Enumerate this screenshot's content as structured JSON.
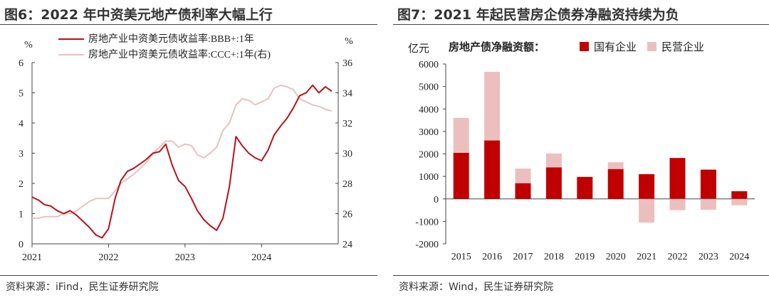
{
  "left": {
    "title": "图6：2022 年中资美元地产债利率大幅上行",
    "source": "资料来源：iFind，民生证券研究院"
  },
  "right": {
    "title": "图7：2021 年起民营房企债券净融资持续为负",
    "source": "资料来源：Wind，民生证券研究院"
  },
  "colors": {
    "dark_red": "#b5121b",
    "light_pink": "#ecbfbf"
  },
  "chart_data": [
    {
      "type": "line",
      "title": "",
      "x_ticks": [
        "2021",
        "2022",
        "2023",
        "2024"
      ],
      "y_left_label": "%",
      "y_right_label": "%",
      "y_left_ticks": [
        "0",
        "1",
        "2",
        "3",
        "4",
        "5",
        "6"
      ],
      "y_right_ticks": [
        "24",
        "26",
        "28",
        "30",
        "32",
        "34",
        "36"
      ],
      "ylim_left": [
        0,
        6
      ],
      "ylim_right": [
        24,
        36
      ],
      "legend_position": "top",
      "grid": false,
      "series": [
        {
          "name": "房地产业中资美元债收益率:BBB+:1年",
          "axis": "left",
          "color": "#b5121b",
          "points": [
            [
              "2021-01-01",
              1.55
            ],
            [
              "2021-02-01",
              1.45
            ],
            [
              "2021-03-01",
              1.3
            ],
            [
              "2021-04-01",
              1.25
            ],
            [
              "2021-05-01",
              1.1
            ],
            [
              "2021-06-01",
              1.0
            ],
            [
              "2021-07-01",
              1.1
            ],
            [
              "2021-08-01",
              0.95
            ],
            [
              "2021-09-01",
              0.75
            ],
            [
              "2021-10-01",
              0.55
            ],
            [
              "2021-11-01",
              0.3
            ],
            [
              "2021-12-01",
              0.2
            ],
            [
              "2022-01-01",
              0.5
            ],
            [
              "2022-02-01",
              1.5
            ],
            [
              "2022-03-01",
              2.1
            ],
            [
              "2022-04-01",
              2.4
            ],
            [
              "2022-05-01",
              2.5
            ],
            [
              "2022-06-01",
              2.65
            ],
            [
              "2022-07-01",
              2.8
            ],
            [
              "2022-08-01",
              3.0
            ],
            [
              "2022-09-01",
              3.05
            ],
            [
              "2022-10-01",
              3.3
            ],
            [
              "2022-11-01",
              2.6
            ],
            [
              "2022-12-01",
              2.1
            ],
            [
              "2023-01-01",
              1.9
            ],
            [
              "2023-02-01",
              1.5
            ],
            [
              "2023-03-01",
              1.1
            ],
            [
              "2023-04-01",
              0.8
            ],
            [
              "2023-05-01",
              0.6
            ],
            [
              "2023-06-01",
              0.45
            ],
            [
              "2023-07-01",
              0.85
            ],
            [
              "2023-08-01",
              1.9
            ],
            [
              "2023-09-01",
              3.55
            ],
            [
              "2023-10-01",
              3.25
            ],
            [
              "2023-11-01",
              3.0
            ],
            [
              "2023-12-01",
              2.85
            ],
            [
              "2024-01-01",
              2.75
            ],
            [
              "2024-02-01",
              3.1
            ],
            [
              "2024-03-01",
              3.6
            ],
            [
              "2024-04-01",
              3.9
            ],
            [
              "2024-05-01",
              4.15
            ],
            [
              "2024-06-01",
              4.5
            ],
            [
              "2024-07-01",
              4.9
            ],
            [
              "2024-08-01",
              5.0
            ],
            [
              "2024-09-01",
              5.25
            ],
            [
              "2024-10-01",
              5.0
            ],
            [
              "2024-11-01",
              5.2
            ],
            [
              "2024-12-01",
              5.05
            ]
          ]
        },
        {
          "name": "房地产业中资美元债收益率:CCC+:1年(右)",
          "axis": "right",
          "color": "#ecbfbf",
          "points": [
            [
              "2021-01-01",
              25.7
            ],
            [
              "2021-02-01",
              25.7
            ],
            [
              "2021-03-01",
              25.8
            ],
            [
              "2021-04-01",
              25.8
            ],
            [
              "2021-05-01",
              25.8
            ],
            [
              "2021-06-01",
              26.0
            ],
            [
              "2021-07-01",
              26.0
            ],
            [
              "2021-08-01",
              26.2
            ],
            [
              "2021-09-01",
              26.5
            ],
            [
              "2021-10-01",
              26.8
            ],
            [
              "2021-11-01",
              27.0
            ],
            [
              "2021-12-01",
              27.0
            ],
            [
              "2022-01-01",
              27.0
            ],
            [
              "2022-02-01",
              27.5
            ],
            [
              "2022-03-01",
              28.0
            ],
            [
              "2022-04-01",
              28.3
            ],
            [
              "2022-05-01",
              28.6
            ],
            [
              "2022-06-01",
              29.0
            ],
            [
              "2022-07-01",
              29.4
            ],
            [
              "2022-08-01",
              30.0
            ],
            [
              "2022-09-01",
              30.4
            ],
            [
              "2022-10-01",
              30.8
            ],
            [
              "2022-11-01",
              30.8
            ],
            [
              "2022-12-01",
              30.4
            ],
            [
              "2023-01-01",
              30.6
            ],
            [
              "2023-02-01",
              30.5
            ],
            [
              "2023-03-01",
              29.9
            ],
            [
              "2023-04-01",
              29.7
            ],
            [
              "2023-05-01",
              30.0
            ],
            [
              "2023-06-01",
              30.4
            ],
            [
              "2023-07-01",
              31.5
            ],
            [
              "2023-08-01",
              32.0
            ],
            [
              "2023-09-01",
              33.2
            ],
            [
              "2023-10-01",
              33.6
            ],
            [
              "2023-11-01",
              33.5
            ],
            [
              "2023-12-01",
              33.2
            ],
            [
              "2024-01-01",
              33.4
            ],
            [
              "2024-02-01",
              33.6
            ],
            [
              "2024-03-01",
              34.3
            ],
            [
              "2024-04-01",
              34.5
            ],
            [
              "2024-05-01",
              34.4
            ],
            [
              "2024-06-01",
              34.2
            ],
            [
              "2024-07-01",
              33.6
            ],
            [
              "2024-08-01",
              33.4
            ],
            [
              "2024-09-01",
              33.2
            ],
            [
              "2024-10-01",
              33.1
            ],
            [
              "2024-11-01",
              32.9
            ],
            [
              "2024-12-01",
              32.8
            ]
          ]
        }
      ]
    },
    {
      "type": "bar",
      "stacked": true,
      "title": "",
      "ylabel": "亿元",
      "legend_title": "房地产债净融资额：",
      "legend_position": "top",
      "categories": [
        "2015",
        "2016",
        "2017",
        "2018",
        "2019",
        "2020",
        "2021",
        "2022",
        "2023",
        "2024"
      ],
      "y_ticks": [
        "6000",
        "5000",
        "4000",
        "3000",
        "2000",
        "1000",
        "0",
        "-1000",
        "-2000"
      ],
      "ylim": [
        -2000,
        6000
      ],
      "grid": false,
      "series": [
        {
          "name": "国有企业",
          "color": "#c00000",
          "values": [
            2050,
            2600,
            700,
            1400,
            980,
            1330,
            1100,
            1820,
            1300,
            340
          ]
        },
        {
          "name": "民营企业",
          "color": "#ecbfbf",
          "values": [
            1550,
            3050,
            650,
            620,
            0,
            300,
            -1050,
            -500,
            -480,
            -280
          ]
        }
      ]
    }
  ]
}
